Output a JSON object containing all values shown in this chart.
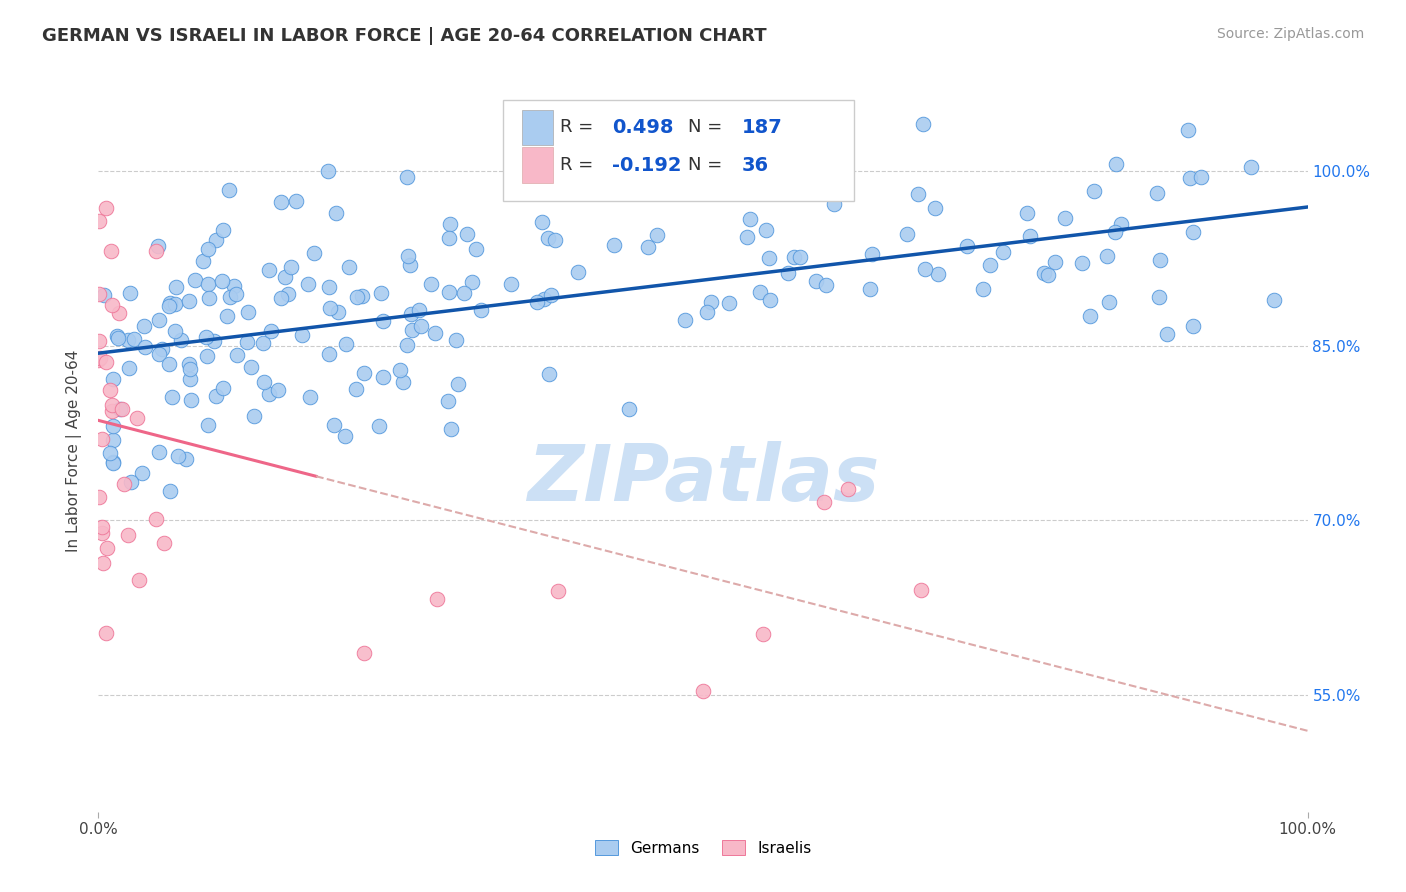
{
  "title": "GERMAN VS ISRAELI IN LABOR FORCE | AGE 20-64 CORRELATION CHART",
  "source": "Source: ZipAtlas.com",
  "ylabel": "In Labor Force | Age 20-64",
  "xlim": [
    0.0,
    1.0
  ],
  "ylim": [
    0.45,
    1.07
  ],
  "yticks": [
    0.55,
    0.7,
    0.85,
    1.0
  ],
  "ytick_labels": [
    "55.0%",
    "70.0%",
    "85.0%",
    "100.0%"
  ],
  "german_R": 0.498,
  "german_N": 187,
  "israeli_R": -0.192,
  "israeli_N": 36,
  "german_color": "#aaccf0",
  "israeli_color": "#f8b8c8",
  "german_edge_color": "#5599dd",
  "israeli_edge_color": "#ee7799",
  "german_line_color": "#1155aa",
  "israeli_line_color": "#ee6688",
  "israeli_dash_color": "#ddaaaa",
  "watermark_color": "#cce0f5",
  "background_color": "#ffffff",
  "legend_r_color": "#1155cc",
  "title_fontsize": 13,
  "axis_label_fontsize": 11,
  "tick_fontsize": 11,
  "source_fontsize": 10
}
